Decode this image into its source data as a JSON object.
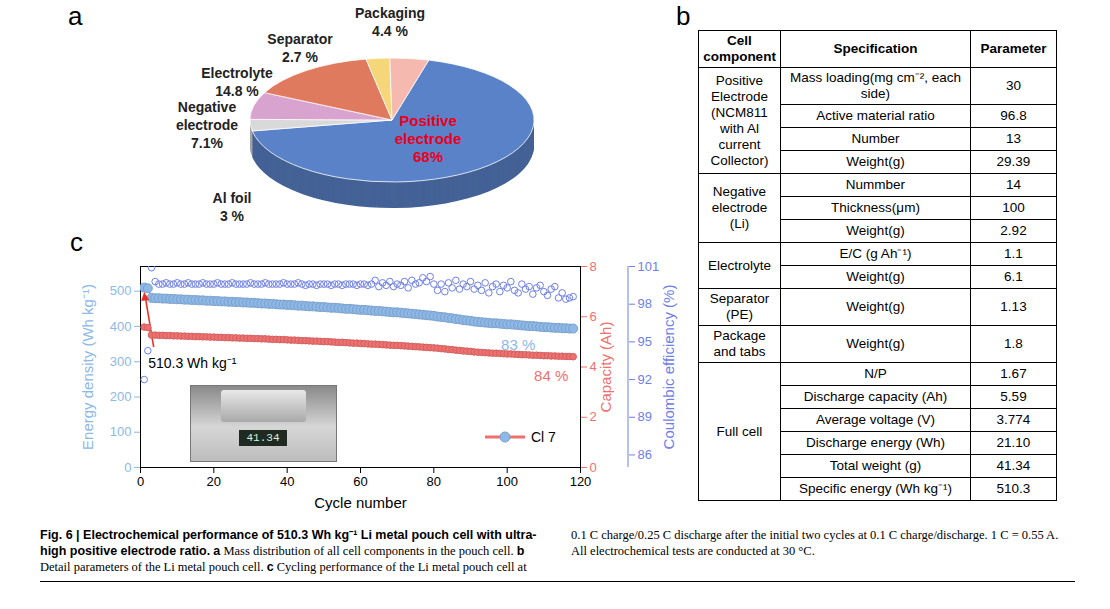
{
  "chart_data": [
    {
      "panel": "a",
      "type": "pie",
      "categories": [
        "Positive electrode",
        "Al foil",
        "Negative electrode",
        "Electrolyte",
        "Separator",
        "Packaging"
      ],
      "values": [
        68,
        3,
        7.1,
        14.8,
        2.7,
        4.4
      ],
      "value_labels": [
        "68%",
        "3 %",
        "7.1%",
        "14.8 %",
        "2.7 %",
        "4.4 %"
      ],
      "colors": [
        "#5a82c8",
        "#d9d9d9",
        "#d9a3cf",
        "#e07a5f",
        "#f5d77a",
        "#f6b9b0"
      ],
      "data_labels": true
    },
    {
      "panel": "c",
      "type": "line",
      "xlabel": "Cycle number",
      "ylabel": "Energy density (Wh kg⁻¹)",
      "y2label": "Capacity (Ah)",
      "y3label": "Coulombic efficiency (%)",
      "x": [
        1,
        2,
        3,
        4,
        5,
        6,
        7,
        8,
        9,
        10,
        11,
        12,
        13,
        14,
        15,
        16,
        17,
        18,
        19,
        20,
        21,
        22,
        23,
        24,
        25,
        26,
        27,
        28,
        29,
        30,
        31,
        32,
        33,
        34,
        35,
        36,
        37,
        38,
        39,
        40,
        41,
        42,
        43,
        44,
        45,
        46,
        47,
        48,
        49,
        50,
        51,
        52,
        53,
        54,
        55,
        56,
        57,
        58,
        59,
        60,
        61,
        62,
        63,
        64,
        65,
        66,
        67,
        68,
        69,
        70,
        71,
        72,
        73,
        74,
        75,
        76,
        77,
        78,
        79,
        80,
        81,
        82,
        83,
        84,
        85,
        86,
        87,
        88,
        89,
        90,
        91,
        92,
        93,
        94,
        95,
        96,
        97,
        98,
        99,
        100,
        101,
        102,
        103,
        104,
        105,
        106,
        107,
        108,
        109,
        110,
        111,
        112,
        113,
        114,
        115,
        116,
        117,
        118
      ],
      "xlim": [
        0,
        120
      ],
      "xticks": [
        0,
        20,
        40,
        60,
        80,
        100,
        120
      ],
      "ylim": [
        0,
        570
      ],
      "yticks": [
        0,
        100,
        200,
        300,
        400,
        500
      ],
      "y2lim": [
        0,
        8
      ],
      "y2ticks": [
        0,
        2,
        4,
        6,
        8
      ],
      "y3lim": [
        85,
        101
      ],
      "y3ticks": [
        86,
        89,
        92,
        95,
        98,
        101
      ],
      "series": [
        {
          "name": "Energy density (Wh kg⁻¹)",
          "axis": "y",
          "color": "#8db8e8",
          "marker": "circle",
          "line_style": "solid",
          "values": [
            510.3,
            508,
            481,
            480,
            480,
            479,
            479,
            478,
            478,
            477,
            477,
            476,
            476,
            475,
            475,
            474,
            474,
            473,
            473,
            472,
            472,
            471,
            471,
            470,
            470,
            469,
            469,
            468,
            468,
            467,
            467,
            466,
            465,
            465,
            464,
            464,
            463,
            462,
            462,
            461,
            461,
            460,
            459,
            459,
            458,
            457,
            457,
            456,
            455,
            455,
            454,
            453,
            453,
            452,
            451,
            450,
            450,
            449,
            448,
            447,
            447,
            446,
            445,
            444,
            444,
            443,
            442,
            441,
            440,
            440,
            439,
            438,
            437,
            436,
            435,
            434,
            433,
            432,
            431,
            430,
            428,
            427,
            426,
            424,
            423,
            421,
            420,
            418,
            417,
            416,
            414,
            413,
            412,
            411,
            410,
            409,
            409,
            408,
            407,
            406,
            406,
            405,
            404,
            403,
            402,
            401,
            401,
            400,
            399,
            398,
            398,
            397,
            396,
            396,
            395,
            395,
            394,
            394
          ]
        },
        {
          "name": "Capacity (Ah)",
          "axis": "y2",
          "color": "#f07070",
          "marker": "circle",
          "line_style": "solid",
          "values": [
            5.59,
            5.57,
            5.27,
            5.27,
            5.26,
            5.26,
            5.25,
            5.25,
            5.24,
            5.24,
            5.23,
            5.23,
            5.22,
            5.22,
            5.21,
            5.21,
            5.2,
            5.2,
            5.19,
            5.19,
            5.18,
            5.18,
            5.17,
            5.17,
            5.16,
            5.16,
            5.15,
            5.15,
            5.14,
            5.14,
            5.13,
            5.13,
            5.12,
            5.12,
            5.11,
            5.1,
            5.1,
            5.09,
            5.09,
            5.08,
            5.07,
            5.07,
            5.06,
            5.05,
            5.05,
            5.04,
            5.03,
            5.03,
            5.02,
            5.01,
            5.01,
            5.0,
            4.99,
            4.98,
            4.98,
            4.97,
            4.96,
            4.95,
            4.95,
            4.94,
            4.93,
            4.92,
            4.91,
            4.91,
            4.9,
            4.89,
            4.88,
            4.87,
            4.86,
            4.86,
            4.85,
            4.84,
            4.83,
            4.82,
            4.81,
            4.8,
            4.79,
            4.78,
            4.77,
            4.76,
            4.75,
            4.73,
            4.72,
            4.7,
            4.69,
            4.67,
            4.66,
            4.64,
            4.63,
            4.62,
            4.6,
            4.59,
            4.58,
            4.57,
            4.56,
            4.55,
            4.55,
            4.54,
            4.53,
            4.52,
            4.52,
            4.51,
            4.5,
            4.49,
            4.49,
            4.48,
            4.47,
            4.47,
            4.46,
            4.45,
            4.45,
            4.44,
            4.44,
            4.43,
            4.43,
            4.42,
            4.42,
            4.41
          ]
        },
        {
          "name": "Coulombic efficiency (%)",
          "axis": "y3",
          "color": "#6f80e6",
          "marker": "open_circle",
          "line_style": "none",
          "values": [
            92.0,
            94.3,
            100.9,
            99.8,
            99.6,
            99.6,
            99.7,
            99.6,
            99.6,
            99.7,
            99.6,
            99.6,
            99.7,
            99.6,
            99.6,
            99.6,
            99.7,
            99.6,
            99.6,
            99.6,
            99.7,
            99.6,
            99.6,
            99.6,
            99.7,
            99.6,
            99.6,
            99.6,
            99.6,
            99.7,
            99.6,
            99.6,
            99.6,
            99.7,
            99.6,
            99.6,
            99.6,
            99.6,
            99.7,
            99.6,
            99.6,
            99.6,
            99.7,
            99.6,
            99.5,
            99.6,
            99.6,
            99.5,
            99.6,
            99.6,
            99.6,
            99.5,
            99.6,
            99.6,
            99.5,
            99.6,
            99.6,
            99.6,
            99.5,
            99.6,
            99.6,
            99.5,
            99.6,
            99.9,
            99.4,
            99.7,
            99.5,
            99.8,
            99.4,
            99.6,
            99.5,
            99.8,
            99.3,
            99.9,
            99.6,
            99.7,
            100.1,
            99.8,
            100.2,
            99.6,
            99.1,
            99.6,
            99.0,
            99.7,
            99.3,
            99.9,
            99.2,
            99.6,
            99.4,
            99.8,
            99.2,
            99.5,
            99.1,
            99.7,
            98.9,
            99.4,
            99.6,
            99.0,
            99.5,
            99.3,
            99.8,
            99.1,
            98.9,
            99.6,
            99.2,
            99.4,
            98.8,
            99.3,
            99.5,
            99.0,
            98.7,
            99.2,
            99.4,
            98.5,
            98.9,
            98.4,
            98.5,
            98.6
          ]
        }
      ],
      "annotations": [
        {
          "text": "510.3 Wh kg⁻¹",
          "series": "Energy density (Wh kg⁻¹)",
          "x": 1
        },
        {
          "text": "83 %",
          "series": "Energy density (Wh kg⁻¹)",
          "x": 103
        },
        {
          "text": "84 %",
          "series": "Capacity (Ah)",
          "x": 112
        }
      ],
      "legend": "lower right",
      "legend_label": "Cl 7",
      "inset": {
        "display": "41.34"
      }
    }
  ],
  "table": {
    "panel": "b",
    "header": [
      "Cell component",
      "Specification",
      "Parameter"
    ],
    "groups": [
      {
        "name": "Positive Electrode (NCM811 with Al current Collector)",
        "rows": [
          [
            "Mass loading(mg cm⁻², each side)",
            "30"
          ],
          [
            "Active material ratio",
            "96.8"
          ],
          [
            "Number",
            "13"
          ],
          [
            "Weight(g)",
            "29.39"
          ]
        ]
      },
      {
        "name": "Negative electrode (Li)",
        "rows": [
          [
            "Nummber",
            "14"
          ],
          [
            "Thickness(μm)",
            "100"
          ],
          [
            "Weight(g)",
            "2.92"
          ]
        ]
      },
      {
        "name": "Electrolyte",
        "rows": [
          [
            "E/C (g Ah⁻¹)",
            "1.1"
          ],
          [
            "Weight(g)",
            "6.1"
          ]
        ]
      },
      {
        "name": "Separator (PE)",
        "rows": [
          [
            "Weight(g)",
            "1.13"
          ]
        ]
      },
      {
        "name": "Package and tabs",
        "rows": [
          [
            "Weight(g)",
            "1.8"
          ]
        ]
      },
      {
        "name": "Full cell",
        "rows": [
          [
            "N/P",
            "1.67"
          ],
          [
            "Discharge capacity (Ah)",
            "5.59"
          ],
          [
            "Average voltage (V)",
            "3.774"
          ],
          [
            "Discharge energy (Wh)",
            "21.10"
          ],
          [
            "Total weight (g)",
            "41.34"
          ],
          [
            "Specific energy (Wh kg⁻¹)",
            "510.3"
          ]
        ]
      }
    ]
  },
  "caption": {
    "title": "Fig. 6 | Electrochemical performance of 510.3 Wh kg⁻¹ Li metal pouch cell with ultra-high positive electrode ratio.",
    "parts": [
      {
        "letter": "a",
        "text": "Mass distribution of all cell components in the pouch cell."
      },
      {
        "letter": "b",
        "text": "Detail parameters of the Li metal pouch cell."
      },
      {
        "letter": "c",
        "text": "Cycling performance of the Li metal pouch cell at 0.1 C charge/0.25 C discharge after the initial two cycles at 0.1 C charge/discharge. 1 C = 0.55 A. All electrochemical tests are conducted at 30 °C."
      }
    ]
  }
}
